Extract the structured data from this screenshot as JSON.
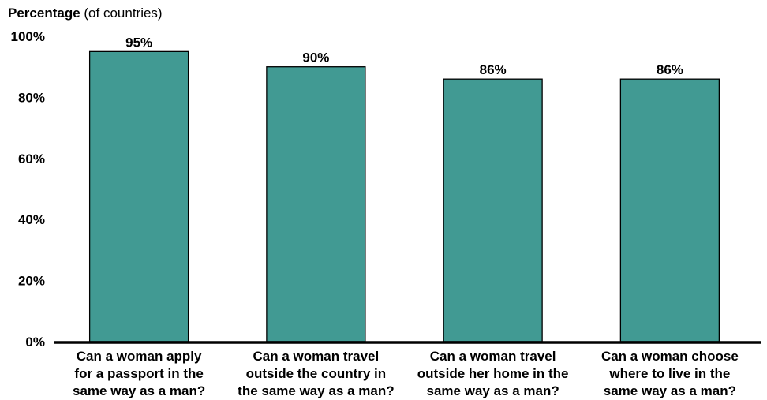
{
  "chart_data": {
    "type": "bar",
    "ylabel": {
      "bold": "Percentage",
      "rest": " (of countries)"
    },
    "title": "",
    "xlabel": "",
    "ylim": [
      0,
      100
    ],
    "yticks": [
      0,
      20,
      40,
      60,
      80,
      100
    ],
    "ytick_labels": [
      "0%",
      "20%",
      "40%",
      "60%",
      "80%",
      "100%"
    ],
    "categories": [
      [
        "Can a woman apply",
        "for a passport in the",
        "same way as a man?"
      ],
      [
        "Can a woman travel",
        "outside the country in",
        "the same way as a man?"
      ],
      [
        "Can a woman travel",
        "outside her home in the",
        "same way as a man?"
      ],
      [
        "Can a woman choose",
        "where to live in the",
        "same way as a man?"
      ]
    ],
    "values": [
      95,
      90,
      86,
      86
    ],
    "value_labels": [
      "95%",
      "90%",
      "86%",
      "86%"
    ],
    "grid": false,
    "bar_color": "#419a93",
    "bar_edge_color": "#000000"
  }
}
